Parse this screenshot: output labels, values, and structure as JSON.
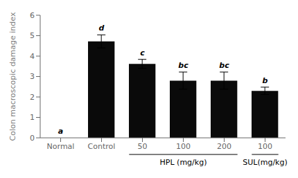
{
  "chart_data": {
    "type": "bar",
    "categories": [
      "Normal",
      "Control",
      "50",
      "100",
      "200",
      "100"
    ],
    "values": [
      0.0,
      4.72,
      3.62,
      2.8,
      2.8,
      2.3
    ],
    "errors": [
      0.0,
      0.32,
      0.22,
      0.42,
      0.42,
      0.18
    ],
    "stat_labels": [
      "a",
      "d",
      "c",
      "bc",
      "bc",
      "b"
    ],
    "color": "#0a0a0a",
    "ylabel": "Colon macroscopic damage index",
    "ylim": [
      0,
      6
    ],
    "yticks": [
      0,
      1,
      2,
      3,
      4,
      5,
      6
    ],
    "grid": false,
    "groups": [
      {
        "label": "HPL (mg/kg)",
        "indices": [
          2,
          3,
          4
        ]
      },
      {
        "label": "SUL(mg/kg)",
        "indices": [
          5
        ]
      }
    ]
  }
}
